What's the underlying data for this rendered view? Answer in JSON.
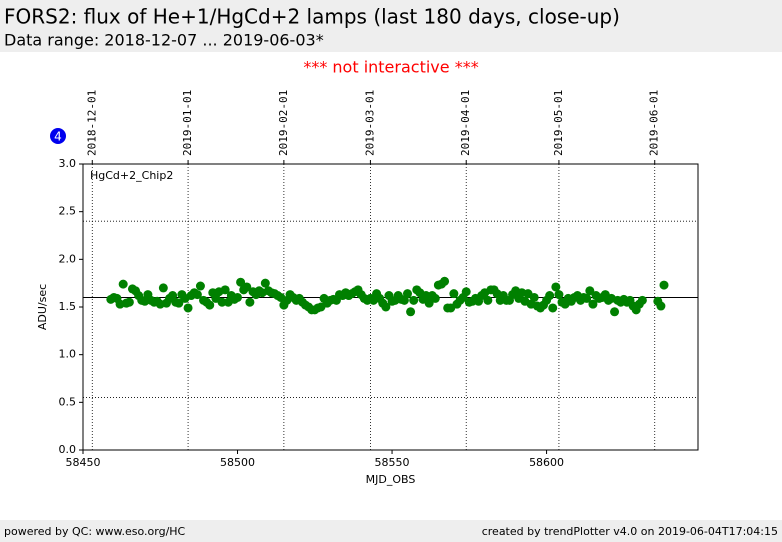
{
  "header": {
    "title": "FORS2: flux of He+1/HgCd+2 lamps (last 180 days, close-up)",
    "subtitle": "Data range: 2018-12-07 ... 2019-06-03*"
  },
  "notice": "*** not interactive ***",
  "badge": "4",
  "footer": {
    "left": "powered by QC: www.eso.org/HC",
    "right": "created by trendPlotter v4.0 on 2019-06-04T17:04:15"
  },
  "chart_data": {
    "type": "scatter",
    "annotation": "HgCd+2_Chip2",
    "xlabel": "MJD_OBS",
    "ylabel": "ADU/sec",
    "color": "#008000",
    "xlim": [
      58450,
      58649
    ],
    "ylim": [
      0,
      3.0
    ],
    "xticks": [
      58450,
      58500,
      58550,
      58600
    ],
    "x2ticks": [
      {
        "value": 58453,
        "label": "2018-12-01"
      },
      {
        "value": 58484,
        "label": "2019-01-01"
      },
      {
        "value": 58515,
        "label": "2019-02-01"
      },
      {
        "value": 58543,
        "label": "2019-03-01"
      },
      {
        "value": 58574,
        "label": "2019-04-01"
      },
      {
        "value": 58604,
        "label": "2019-05-01"
      },
      {
        "value": 58635,
        "label": "2019-06-01"
      }
    ],
    "yticks": [
      {
        "value": 0,
        "label": "0.0"
      },
      0.5,
      {
        "value": 1.0,
        "label": "1.0"
      },
      1.5,
      {
        "value": 2.0,
        "label": "2.0"
      },
      2.5,
      {
        "value": 3.0,
        "label": "3.0"
      }
    ],
    "mean_line": 1.6,
    "threshold_lines": [
      0.55,
      2.4
    ],
    "grid": true,
    "x": [
      58459,
      58460,
      58461,
      58462,
      58463,
      58464,
      58465,
      58466,
      58467,
      58468,
      58469,
      58470,
      58471,
      58472,
      58473,
      58474,
      58475,
      58476,
      58477,
      58478,
      58479,
      58480,
      58481,
      58482,
      58483,
      58484,
      58485,
      58486,
      58487,
      58488,
      58489,
      58490,
      58491,
      58492,
      58493,
      58494,
      58495,
      58496,
      58497,
      58498,
      58499,
      58500,
      58501,
      58502,
      58503,
      58504,
      58505,
      58506,
      58507,
      58508,
      58509,
      58510,
      58511,
      58512,
      58513,
      58514,
      58515,
      58516,
      58517,
      58518,
      58519,
      58520,
      58521,
      58522,
      58523,
      58524,
      58525,
      58526,
      58527,
      58528,
      58529,
      58530,
      58531,
      58532,
      58533,
      58534,
      58535,
      58536,
      58537,
      58538,
      58539,
      58540,
      58541,
      58542,
      58543,
      58544,
      58545,
      58546,
      58547,
      58548,
      58549,
      58550,
      58551,
      58552,
      58553,
      58554,
      58555,
      58556,
      58557,
      58558,
      58559,
      58560,
      58561,
      58562,
      58563,
      58564,
      58565,
      58566,
      58567,
      58568,
      58569,
      58570,
      58571,
      58572,
      58573,
      58574,
      58575,
      58576,
      58577,
      58578,
      58579,
      58580,
      58581,
      58582,
      58583,
      58584,
      58585,
      58586,
      58587,
      58588,
      58589,
      58590,
      58591,
      58592,
      58593,
      58594,
      58595,
      58596,
      58597,
      58598,
      58599,
      58600,
      58601,
      58602,
      58603,
      58604,
      58605,
      58606,
      58607,
      58608,
      58609,
      58610,
      58611,
      58612,
      58613,
      58614,
      58615,
      58616,
      58617,
      58618,
      58619,
      58620,
      58621,
      58622,
      58623,
      58624,
      58625,
      58626,
      58627,
      58628,
      58629,
      58630,
      58631,
      58636,
      58637,
      58638
    ],
    "values": [
      1.58,
      1.6,
      1.59,
      1.53,
      1.74,
      1.54,
      1.55,
      1.69,
      1.67,
      1.62,
      1.57,
      1.56,
      1.63,
      1.57,
      1.55,
      1.56,
      1.53,
      1.7,
      1.54,
      1.59,
      1.62,
      1.55,
      1.54,
      1.63,
      1.59,
      1.49,
      1.62,
      1.65,
      1.63,
      1.72,
      1.57,
      1.55,
      1.52,
      1.65,
      1.59,
      1.66,
      1.55,
      1.68,
      1.55,
      1.62,
      1.58,
      1.6,
      1.76,
      1.68,
      1.71,
      1.55,
      1.66,
      1.63,
      1.67,
      1.65,
      1.75,
      1.67,
      1.65,
      1.64,
      1.62,
      1.6,
      1.52,
      1.57,
      1.63,
      1.6,
      1.57,
      1.59,
      1.55,
      1.52,
      1.5,
      1.47,
      1.47,
      1.49,
      1.5,
      1.59,
      1.54,
      1.57,
      1.58,
      1.57,
      1.63,
      1.62,
      1.65,
      1.62,
      1.64,
      1.66,
      1.68,
      1.63,
      1.59,
      1.57,
      1.59,
      1.57,
      1.64,
      1.59,
      1.54,
      1.5,
      1.62,
      1.56,
      1.57,
      1.62,
      1.58,
      1.57,
      1.64,
      1.45,
      1.57,
      1.68,
      1.65,
      1.58,
      1.62,
      1.54,
      1.62,
      1.59,
      1.73,
      1.74,
      1.77,
      1.49,
      1.49,
      1.64,
      1.53,
      1.57,
      1.6,
      1.66,
      1.55,
      1.56,
      1.59,
      1.56,
      1.62,
      1.65,
      1.57,
      1.68,
      1.68,
      1.64,
      1.57,
      1.62,
      1.57,
      1.57,
      1.63,
      1.67,
      1.59,
      1.65,
      1.56,
      1.64,
      1.53,
      1.6,
      1.51,
      1.49,
      1.52,
      1.57,
      1.62,
      1.49,
      1.71,
      1.63,
      1.55,
      1.53,
      1.59,
      1.56,
      1.6,
      1.62,
      1.57,
      1.6,
      1.59,
      1.67,
      1.53,
      1.62,
      1.59,
      1.6,
      1.63,
      1.57,
      1.59,
      1.45,
      1.57,
      1.55,
      1.58,
      1.55,
      1.57,
      1.51,
      1.47,
      1.53,
      1.57,
      1.56,
      1.51,
      1.73
    ]
  }
}
